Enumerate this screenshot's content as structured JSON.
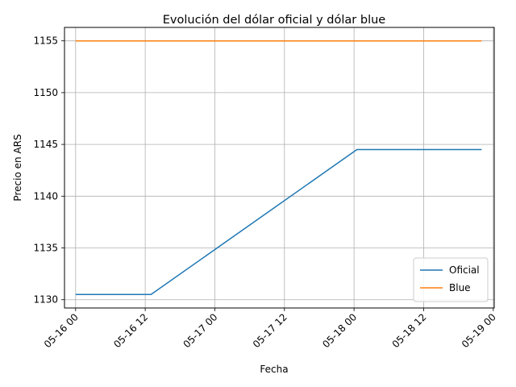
{
  "chart_data": {
    "type": "line",
    "title": "Evolución del dólar oficial y dólar blue",
    "xlabel": "Fecha",
    "ylabel": "Precio en ARS",
    "x_ticks": [
      "05-16 00",
      "05-16 12",
      "05-17 00",
      "05-17 12",
      "05-18 00",
      "05-18 12",
      "05-19 00"
    ],
    "y_ticks": [
      "1130",
      "1135",
      "1140",
      "1145",
      "1150",
      "1155"
    ],
    "ylim": [
      1129.2,
      1156.3
    ],
    "xlim": [
      "2024-05-15T22:05",
      "2024-05-19T00:10"
    ],
    "grid": true,
    "legend_position": "lower right",
    "series": [
      {
        "name": "Oficial",
        "color": "#1f77b4",
        "x": [
          "2024-05-16T00:00",
          "2024-05-16T13:00",
          "2024-05-18T00:30",
          "2024-05-18T22:00"
        ],
        "y": [
          1130.5,
          1130.5,
          1144.5,
          1144.5
        ]
      },
      {
        "name": "Blue",
        "color": "#ff7f0e",
        "x": [
          "2024-05-16T00:00",
          "2024-05-18T22:00"
        ],
        "y": [
          1155,
          1155
        ]
      }
    ]
  }
}
